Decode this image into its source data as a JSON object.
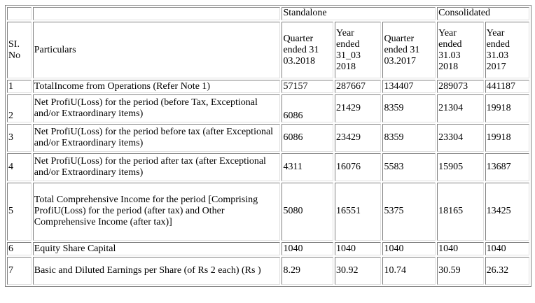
{
  "groups": {
    "standalone": "Standalone",
    "consolidated": "Consolidated"
  },
  "columns": {
    "sl_no": "SI. No",
    "particulars": "Particulars",
    "s_q_2018": "Quarter ended 31 03.2018",
    "s_y_2018": "Year ended 31_03 2018",
    "s_q_2017": "Quarter ended 31 03.2017",
    "c_y_2018": "Year ended 31.03 2018",
    "c_y_2017": "Year ended 31.03 2017"
  },
  "rows": [
    {
      "no": "1",
      "particulars": "TotalIncome from Operations (Refer Note 1)",
      "s_q_2018": "57157",
      "s_y_2018": "287667",
      "s_q_2017": "134407",
      "c_y_2018": "289073",
      "c_y_2017": "441187"
    },
    {
      "no": "2",
      "particulars": "Net ProfiU(Loss) for the period (before Tax, Exceptional and/or Extraordinary items)",
      "s_q_2018": "6086",
      "s_y_2018": "21429",
      "s_q_2017": "8359",
      "c_y_2018": "21304",
      "c_y_2017": "19918"
    },
    {
      "no": "3",
      "particulars": "Net ProfiU(Loss) for the period before tax (after Exceptional and/or Extraordinary items)",
      "s_q_2018": "6086",
      "s_y_2018": "23429",
      "s_q_2017": "8359",
      "c_y_2018": "23304",
      "c_y_2017": "19918"
    },
    {
      "no": "4",
      "particulars": "Net ProfiU(Loss) for the period after tax (after Exceptional and/or Extraordinary items)",
      "s_q_2018": "4311",
      "s_y_2018": "16076",
      "s_q_2017": "5583",
      "c_y_2018": "15905",
      "c_y_2017": "13687"
    },
    {
      "no": "5",
      "particulars": "Total Comprehensive Income for the period [Comprising ProfiU(Loss) for the period (after tax) and Other Comprehensive Income (after tax)]",
      "s_q_2018": "5080",
      "s_y_2018": "16551",
      "s_q_2017": "5375",
      "c_y_2018": "18165",
      "c_y_2017": "13425"
    },
    {
      "no": "6",
      "particulars": "Equity Share Capital",
      "s_q_2018": "1040",
      "s_y_2018": "1040",
      "s_q_2017": "1040",
      "c_y_2018": "1040",
      "c_y_2017": "1040"
    },
    {
      "no": "7",
      "particulars": "Basic and Diluted Earnings per Share (of Rs 2 each) (Rs )",
      "s_q_2018": "8.29",
      "s_y_2018": "30.92",
      "s_q_2017": "10.74",
      "c_y_2018": "30.59",
      "c_y_2017": "26.32"
    }
  ]
}
